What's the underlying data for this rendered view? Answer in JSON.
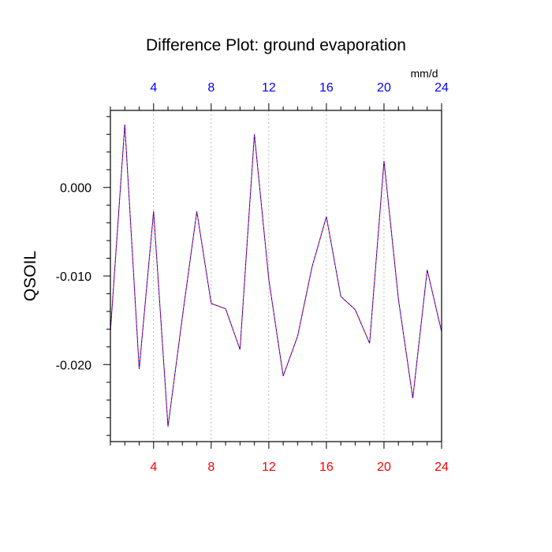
{
  "chart_data": {
    "type": "line",
    "title": "Difference Plot: ground evaporation",
    "units": "mm/d",
    "ylabel": "QSOIL",
    "xlim": [
      1,
      24
    ],
    "ylim": [
      -0.0287,
      0.0087
    ],
    "x_ticks": [
      4,
      8,
      12,
      16,
      20,
      24
    ],
    "x_tick_labels": [
      "4",
      "8",
      "12",
      "16",
      "20",
      "24"
    ],
    "y_ticks": [
      0.0,
      -0.01,
      -0.02
    ],
    "y_tick_labels": [
      "0.000",
      "-0.010",
      "-0.020"
    ],
    "grid": "vertical dashed at major x ticks",
    "colors": {
      "bottom_tick_labels": "#ff0000",
      "top_tick_labels": "#0000ff",
      "series_primary": "#ff0000",
      "series_overlay": "#0000ff",
      "grid": "#aaaaaa",
      "axis": "#000000"
    },
    "series": [
      {
        "x": [
          1,
          2,
          3,
          4,
          5,
          6,
          7,
          8,
          9,
          10,
          11,
          12,
          13,
          14,
          15,
          16,
          17,
          18,
          19,
          20,
          21,
          22,
          23,
          24
        ],
        "values": [
          -0.0163,
          0.0071,
          -0.0205,
          -0.0027,
          -0.027,
          -0.0146,
          -0.0027,
          -0.0131,
          -0.0137,
          -0.0183,
          0.006,
          -0.0104,
          -0.0213,
          -0.0168,
          -0.009,
          -0.0033,
          -0.0123,
          -0.0138,
          -0.0176,
          0.003,
          -0.0126,
          -0.0238,
          -0.0093,
          -0.0163
        ]
      }
    ]
  }
}
